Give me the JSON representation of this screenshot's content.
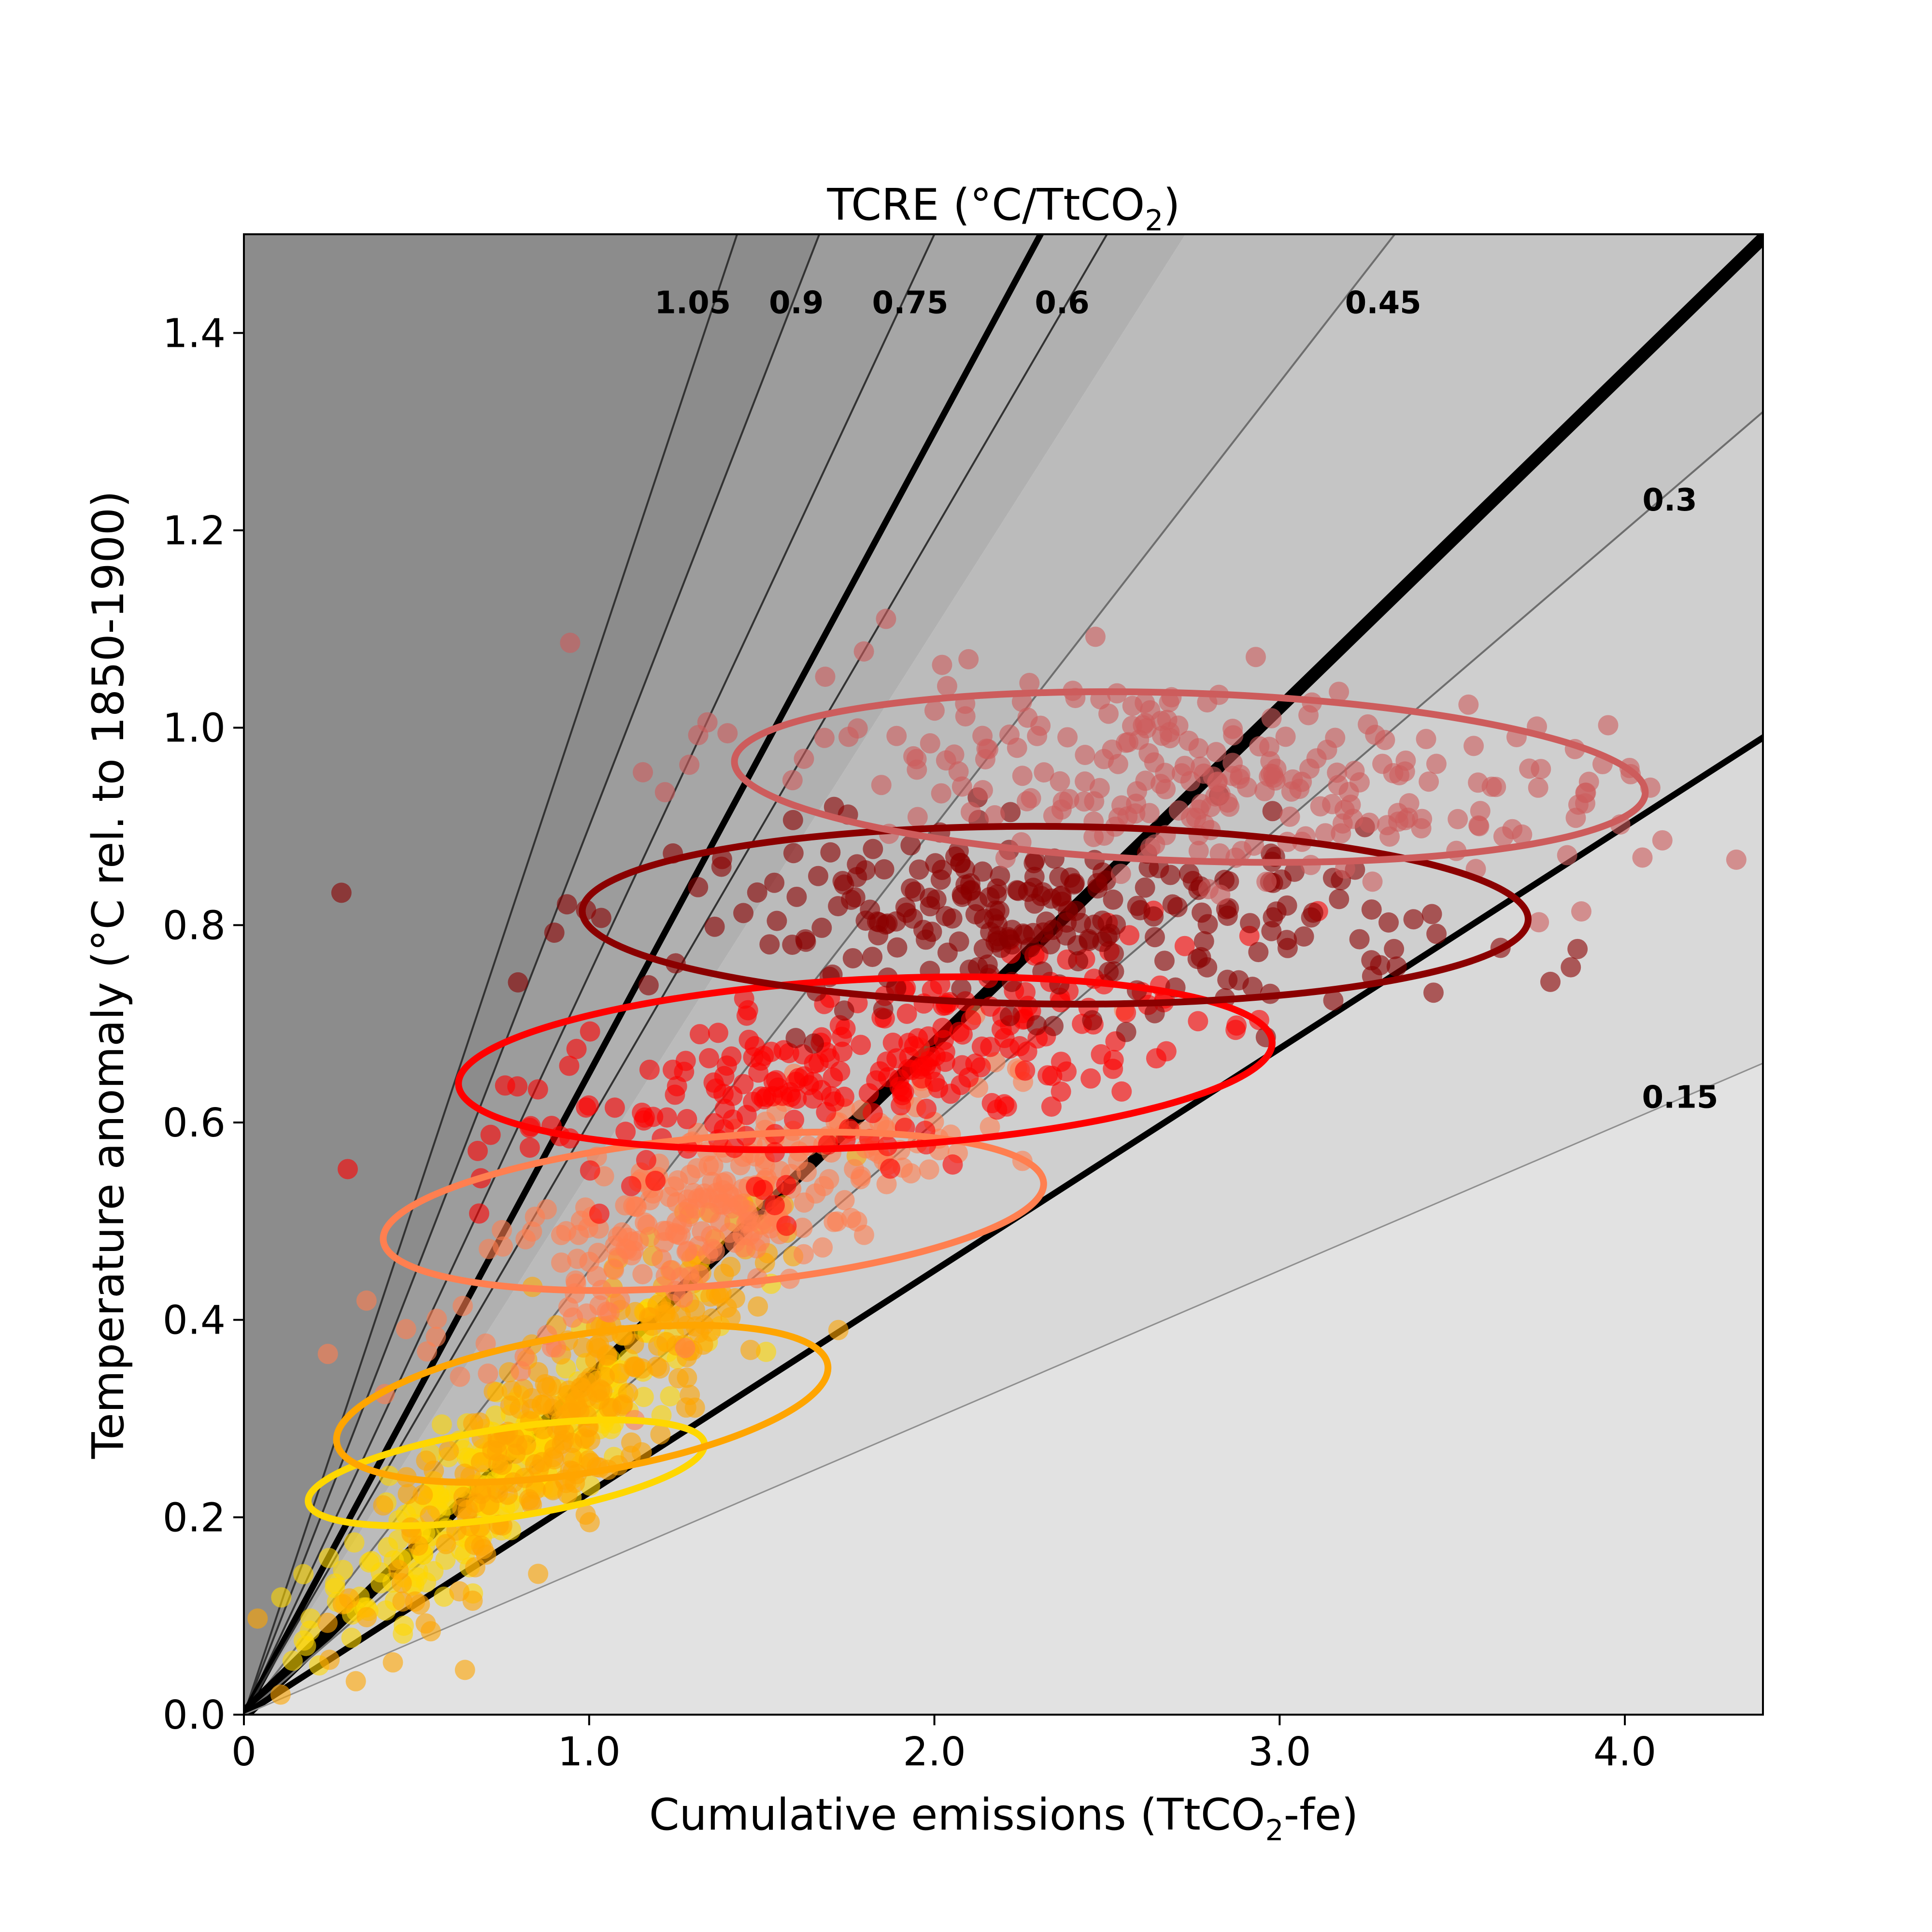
{
  "chart_data": {
    "type": "scatter",
    "title": "TCRE (°C/TtCO",
    "title_sub": "2",
    "title_tail": ")",
    "xlabel": "Cumulative emissions (TtCO",
    "xlabel_sub": "2",
    "xlabel_tail": "-fe)",
    "ylabel": "Temperature anomaly (°C rel. to 1850-1900)",
    "xlim": [
      0,
      4.4
    ],
    "ylim": [
      0,
      1.5
    ],
    "grid": false,
    "x_ticks": [
      0,
      1.0,
      2.0,
      3.0,
      4.0
    ],
    "x_tick_labels": [
      "0",
      "1.0",
      "2.0",
      "3.0",
      "4.0"
    ],
    "y_ticks": [
      0,
      0.2,
      0.4,
      0.6,
      0.8,
      1.0,
      1.2,
      1.4
    ],
    "y_tick_labels": [
      "0.0",
      "0.2",
      "0.4",
      "0.6",
      "0.8",
      "1.0",
      "1.2",
      "1.4"
    ],
    "band_colors": [
      "#e2e2e2",
      "#d9d9d9",
      "#cfcfcf",
      "#c5c5c5",
      "#bbbbbb",
      "#b0b0b0",
      "#a6a6a6",
      "#9c9c9c",
      "#8c8c8c"
    ],
    "band_bounds": [
      0.15,
      0.225,
      0.3,
      0.45,
      0.55,
      0.65,
      0.75,
      0.9,
      1.05
    ],
    "tcre_lines": [
      {
        "slope": 1.05,
        "label": "1.05",
        "style": "thin-dark"
      },
      {
        "slope": 0.9,
        "label": "0.9",
        "style": "thin-dark"
      },
      {
        "slope": 0.75,
        "label": "0.75",
        "style": "thin-dark"
      },
      {
        "slope": 0.65,
        "label": "",
        "style": "bold"
      },
      {
        "slope": 0.6,
        "label": "0.6",
        "style": "thin-dark"
      },
      {
        "slope": 0.45,
        "label": "0.45",
        "style": "thin-grey"
      },
      {
        "slope": 0.34,
        "label": "",
        "style": "extra-bold"
      },
      {
        "slope": 0.3,
        "label": "0.3",
        "style": "thin-grey"
      },
      {
        "slope": 0.225,
        "label": "",
        "style": "bold"
      },
      {
        "slope": 0.15,
        "label": "0.15",
        "style": "thin-light"
      }
    ],
    "slope_label_positions": [
      {
        "label": "1.05",
        "x": 1.3,
        "y": 1.42
      },
      {
        "label": "0.9",
        "x": 1.6,
        "y": 1.42
      },
      {
        "label": "0.75",
        "x": 1.93,
        "y": 1.42
      },
      {
        "label": "0.6",
        "x": 2.37,
        "y": 1.42
      },
      {
        "label": "0.45",
        "x": 3.3,
        "y": 1.42
      },
      {
        "label": "0.3",
        "x": 4.13,
        "y": 1.22
      },
      {
        "label": "0.15",
        "x": 4.16,
        "y": 0.615
      }
    ],
    "series": [
      {
        "color": "#ffd700",
        "alpha": 0.6,
        "n": 260,
        "center": [
          0.75,
          0.245
        ],
        "spread": [
          0.28,
          0.038
        ],
        "tilt": 0.26,
        "ellipse": {
          "cx": 0.76,
          "cy": 0.245,
          "rx": 0.58,
          "ry": 0.045,
          "angle_deg": 8.5
        }
      },
      {
        "color": "#ffa500",
        "alpha": 0.6,
        "n": 260,
        "center": [
          0.98,
          0.31
        ],
        "spread": [
          0.33,
          0.05
        ],
        "tilt": 0.28,
        "ellipse": {
          "cx": 0.98,
          "cy": 0.315,
          "rx": 0.72,
          "ry": 0.07,
          "angle_deg": 9.0
        }
      },
      {
        "color": "#ff7f50",
        "alpha": 0.6,
        "n": 260,
        "center": [
          1.35,
          0.51
        ],
        "spread": [
          0.38,
          0.045
        ],
        "tilt": 0.14,
        "ellipse": {
          "cx": 1.36,
          "cy": 0.51,
          "rx": 0.96,
          "ry": 0.075,
          "angle_deg": 5.0
        }
      },
      {
        "color": "#ff0000",
        "alpha": 0.6,
        "n": 260,
        "center": [
          1.8,
          0.655
        ],
        "spread": [
          0.5,
          0.045
        ],
        "tilt": 0.08,
        "ellipse": {
          "cx": 1.8,
          "cy": 0.66,
          "rx": 1.18,
          "ry": 0.085,
          "angle_deg": 3.0
        }
      },
      {
        "color": "#8b0000",
        "alpha": 0.6,
        "n": 260,
        "center": [
          2.35,
          0.805
        ],
        "spread": [
          0.55,
          0.045
        ],
        "tilt": -0.01,
        "ellipse": {
          "cx": 2.35,
          "cy": 0.81,
          "rx": 1.37,
          "ry": 0.09,
          "angle_deg": -0.5
        }
      },
      {
        "color": "#cd5c5c",
        "alpha": 0.6,
        "n": 260,
        "center": [
          2.75,
          0.95
        ],
        "spread": [
          0.6,
          0.05
        ],
        "tilt": -0.04,
        "ellipse": {
          "cx": 2.74,
          "cy": 0.95,
          "rx": 1.32,
          "ry": 0.085,
          "angle_deg": -2.0
        }
      }
    ]
  }
}
